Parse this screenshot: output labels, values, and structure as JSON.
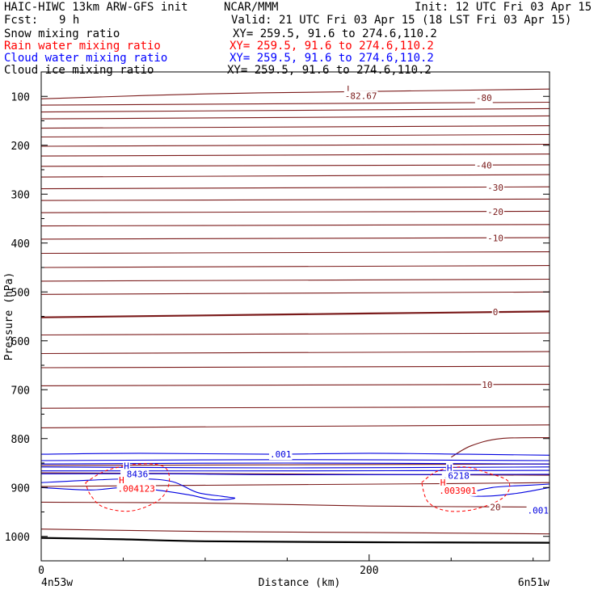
{
  "header": {
    "model": "HAIC-HIWC 13km ARW-GFS init",
    "org": "NCAR/MMM",
    "init": "Init: 12 UTC Fri 03 Apr 15",
    "fcst_label": "Fcst:",
    "fcst_value": "9 h",
    "valid": "Valid: 21 UTC Fri 03 Apr 15 (18 LST Fri 03 Apr 15)"
  },
  "fields": [
    {
      "name": "Snow mixing ratio",
      "xy": "XY= 259.5, 91.6 to 274.6,110.2",
      "color": "#000000"
    },
    {
      "name": "Rain water mixing ratio",
      "xy": "XY= 259.5, 91.6 to 274.6,110.2",
      "color": "#ff0000"
    },
    {
      "name": "Cloud water mixing ratio",
      "xy": "XY= 259.5, 91.6 to 274.6,110.2",
      "color": "#0000ff"
    },
    {
      "name": "Cloud ice mixing ratio",
      "xy": "XY= 259.5, 91.6 to 274.6,110.2",
      "color": "#000000"
    }
  ],
  "colors": {
    "temperature": "#7a1a1a",
    "cloud_water": "#0000e0",
    "rain": "#ff0000",
    "axis": "#000000"
  },
  "chart_data": {
    "type": "line",
    "xlabel": "Distance (km)",
    "ylabel": "Pressure (hPa)",
    "xlim": [
      0,
      310
    ],
    "ylim": [
      50,
      1050
    ],
    "y_inverted": true,
    "x_ticks": [
      0,
      200
    ],
    "y_ticks": [
      100,
      200,
      300,
      400,
      500,
      600,
      700,
      800,
      900,
      1000
    ],
    "endpoint_left": "4n53w",
    "endpoint_right": "6n51w",
    "isotherms": [
      {
        "label": "-80",
        "points": [
          [
            0,
            105
          ],
          [
            100,
            95
          ],
          [
            200,
            90
          ],
          [
            310,
            85
          ]
        ]
      },
      {
        "label": "",
        "points": [
          [
            0,
            118
          ],
          [
            310,
            112
          ]
        ]
      },
      {
        "label": "",
        "points": [
          [
            0,
            132
          ],
          [
            310,
            125
          ]
        ]
      },
      {
        "label": "",
        "points": [
          [
            0,
            146
          ],
          [
            310,
            140
          ]
        ]
      },
      {
        "label": "",
        "points": [
          [
            0,
            165
          ],
          [
            310,
            160
          ]
        ]
      },
      {
        "label": "",
        "points": [
          [
            0,
            183
          ],
          [
            310,
            178
          ]
        ]
      },
      {
        "label": "",
        "points": [
          [
            0,
            202
          ],
          [
            310,
            198
          ]
        ]
      },
      {
        "label": "",
        "points": [
          [
            0,
            222
          ],
          [
            310,
            218
          ]
        ]
      },
      {
        "label": "-40",
        "points": [
          [
            0,
            243
          ],
          [
            310,
            240
          ]
        ]
      },
      {
        "label": "",
        "points": [
          [
            0,
            265
          ],
          [
            310,
            260
          ]
        ]
      },
      {
        "label": "-30",
        "points": [
          [
            0,
            289
          ],
          [
            310,
            285
          ]
        ]
      },
      {
        "label": "",
        "points": [
          [
            0,
            313
          ],
          [
            310,
            310
          ]
        ]
      },
      {
        "label": "-20",
        "points": [
          [
            0,
            338
          ],
          [
            310,
            335
          ]
        ]
      },
      {
        "label": "",
        "points": [
          [
            0,
            365
          ],
          [
            310,
            362
          ]
        ]
      },
      {
        "label": "-10",
        "points": [
          [
            0,
            392
          ],
          [
            310,
            389
          ]
        ]
      },
      {
        "label": "",
        "points": [
          [
            0,
            421
          ],
          [
            310,
            418
          ]
        ]
      },
      {
        "label": "",
        "points": [
          [
            0,
            450
          ],
          [
            310,
            446
          ]
        ]
      },
      {
        "label": "",
        "points": [
          [
            0,
            478
          ],
          [
            310,
            474
          ]
        ]
      },
      {
        "label": "",
        "points": [
          [
            0,
            505
          ],
          [
            310,
            500
          ]
        ]
      },
      {
        "label": "0",
        "points": [
          [
            0,
            552
          ],
          [
            100,
            548
          ],
          [
            200,
            544
          ],
          [
            310,
            540
          ]
        ]
      },
      {
        "label": "",
        "points": [
          [
            0,
            588
          ],
          [
            310,
            584
          ]
        ]
      },
      {
        "label": "",
        "points": [
          [
            0,
            626
          ],
          [
            310,
            622
          ]
        ]
      },
      {
        "label": "",
        "points": [
          [
            0,
            655
          ],
          [
            310,
            652
          ]
        ]
      },
      {
        "label": "10",
        "points": [
          [
            0,
            692
          ],
          [
            310,
            689
          ]
        ]
      },
      {
        "label": "",
        "points": [
          [
            0,
            738
          ],
          [
            310,
            735
          ]
        ]
      },
      {
        "label": "",
        "points": [
          [
            0,
            778
          ],
          [
            310,
            772
          ]
        ]
      },
      {
        "label": "",
        "points": [
          [
            250,
            838
          ],
          [
            262,
            815
          ],
          [
            280,
            800
          ],
          [
            310,
            798
          ]
        ]
      },
      {
        "label": "",
        "points": [
          [
            0,
            855
          ],
          [
            310,
            852
          ]
        ]
      },
      {
        "label": "",
        "points": [
          [
            0,
            870
          ],
          [
            310,
            875
          ]
        ]
      },
      {
        "label": "",
        "points": [
          [
            0,
            898
          ],
          [
            120,
            895
          ],
          [
            250,
            892
          ],
          [
            310,
            890
          ]
        ]
      },
      {
        "label": "20",
        "points": [
          [
            0,
            930
          ],
          [
            100,
            932
          ],
          [
            200,
            938
          ],
          [
            310,
            940
          ]
        ]
      },
      {
        "label": "",
        "points": [
          [
            0,
            985
          ],
          [
            100,
            990
          ],
          [
            200,
            992
          ],
          [
            310,
            995
          ]
        ]
      }
    ],
    "snow_contour": {
      "label": "",
      "points": [
        [
          0,
          1003
        ],
        [
          50,
          1006
        ],
        [
          100,
          1010
        ],
        [
          200,
          1012
        ],
        [
          310,
          1013
        ]
      ]
    },
    "cloud_water_contours": [
      {
        "label": ".001",
        "points": [
          [
            0,
            832
          ],
          [
            60,
            830
          ],
          [
            140,
            832
          ],
          [
            200,
            830
          ],
          [
            260,
            832
          ],
          [
            310,
            834
          ]
        ]
      },
      {
        "label": "",
        "points": [
          [
            0,
            845
          ],
          [
            150,
            843
          ],
          [
            310,
            845
          ]
        ]
      },
      {
        "label": "",
        "points": [
          [
            0,
            852
          ],
          [
            150,
            850
          ],
          [
            310,
            852
          ]
        ]
      },
      {
        "label": "",
        "points": [
          [
            0,
            858
          ],
          [
            150,
            860
          ],
          [
            310,
            858
          ]
        ]
      },
      {
        "label": "",
        "points": [
          [
            0,
            866
          ],
          [
            150,
            866
          ],
          [
            310,
            865
          ]
        ]
      },
      {
        "label": "",
        "points": [
          [
            0,
            872
          ],
          [
            80,
            872
          ],
          [
            150,
            874
          ],
          [
            310,
            873
          ]
        ]
      },
      {
        "label": ".001",
        "points": [
          [
            0,
            890
          ],
          [
            30,
            885
          ],
          [
            60,
            882
          ],
          [
            80,
            888
          ],
          [
            95,
            910
          ],
          [
            110,
            918
          ],
          [
            118,
            922
          ],
          [
            105,
            925
          ],
          [
            90,
            915
          ],
          [
            70,
            905
          ],
          [
            50,
            900
          ],
          [
            30,
            905
          ],
          [
            0,
            900
          ]
        ]
      },
      {
        "label": ".001",
        "points": [
          [
            310,
            900
          ],
          [
            290,
            912
          ],
          [
            270,
            918
          ],
          [
            260,
            914
          ],
          [
            275,
            900
          ],
          [
            300,
            895
          ],
          [
            310,
            893
          ]
        ]
      }
    ],
    "rain_contours": [
      {
        "label": "",
        "points": [
          [
            27,
            890
          ],
          [
            40,
            865
          ],
          [
            60,
            852
          ],
          [
            75,
            858
          ],
          [
            78,
            890
          ],
          [
            72,
            925
          ],
          [
            55,
            948
          ],
          [
            38,
            940
          ],
          [
            30,
            915
          ],
          [
            27,
            890
          ]
        ]
      },
      {
        "label": "",
        "points": [
          [
            232,
            890
          ],
          [
            242,
            866
          ],
          [
            258,
            858
          ],
          [
            272,
            870
          ],
          [
            285,
            888
          ],
          [
            282,
            920
          ],
          [
            265,
            944
          ],
          [
            248,
            948
          ],
          [
            236,
            930
          ],
          [
            232,
            890
          ]
        ]
      }
    ],
    "annotations": [
      {
        "text": "L",
        "x": 188,
        "y": 85,
        "kind": "temp"
      },
      {
        "text": "-82.67",
        "x": 195,
        "y": 99,
        "kind": "temp"
      },
      {
        "text": "-80",
        "x": 270,
        "y": 103,
        "kind": "temp"
      },
      {
        "text": "-40",
        "x": 270,
        "y": 241,
        "kind": "temp"
      },
      {
        "text": "-30",
        "x": 277,
        "y": 286,
        "kind": "temp"
      },
      {
        "text": "-20",
        "x": 277,
        "y": 336,
        "kind": "temp"
      },
      {
        "text": "-10",
        "x": 277,
        "y": 390,
        "kind": "temp"
      },
      {
        "text": "0",
        "x": 277,
        "y": 541,
        "kind": "temp"
      },
      {
        "text": "10",
        "x": 272,
        "y": 690,
        "kind": "temp"
      },
      {
        "text": "20",
        "x": 277,
        "y": 940,
        "kind": "temp"
      },
      {
        "text": "H",
        "x": 52,
        "y": 856,
        "kind": "cloud"
      },
      {
        "text": ".8436",
        "x": 57,
        "y": 872,
        "kind": "cloud"
      },
      {
        "text": "H",
        "x": 49,
        "y": 885,
        "kind": "rain"
      },
      {
        "text": ".004123",
        "x": 58,
        "y": 902,
        "kind": "rain"
      },
      {
        "text": ".001",
        "x": 146,
        "y": 832,
        "kind": "cloud"
      },
      {
        "text": "H",
        "x": 249,
        "y": 860,
        "kind": "cloud"
      },
      {
        "text": ".6218",
        "x": 253,
        "y": 876,
        "kind": "cloud"
      },
      {
        "text": "H",
        "x": 245,
        "y": 890,
        "kind": "rain"
      },
      {
        "text": ".003901",
        "x": 254,
        "y": 906,
        "kind": "rain"
      },
      {
        "text": ".001",
        "x": 303,
        "y": 947,
        "kind": "cloud"
      }
    ]
  }
}
